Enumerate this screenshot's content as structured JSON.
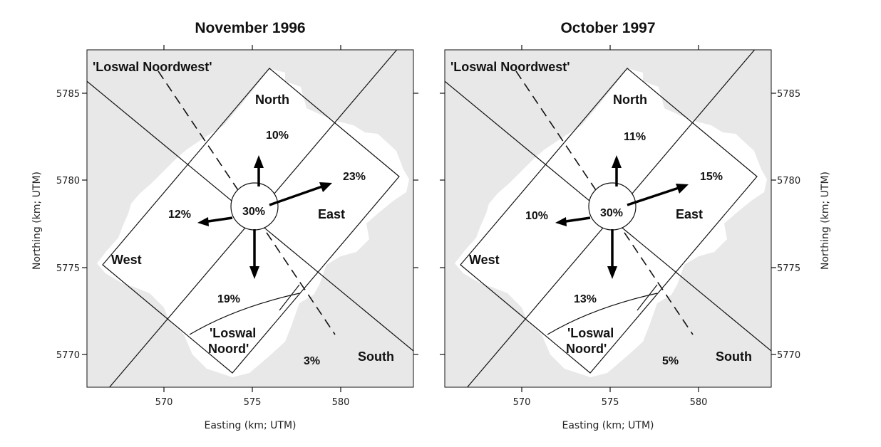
{
  "panels": [
    {
      "title": "November 1996",
      "xlabel": "Easting (km; UTM)",
      "ylabel": "Northing (km; UTM)",
      "x_ticks": [
        "570",
        "575",
        "580"
      ],
      "y_ticks": [
        "5785",
        "5780",
        "5775",
        "5770"
      ],
      "labels": {
        "loswal_noordwest": "'Loswal Noordwest'",
        "north": "North",
        "east": "East",
        "west": "West",
        "south": "South",
        "loswal_noord_1": "'Loswal",
        "loswal_noord_2": "Noord'"
      },
      "percentages": {
        "center": "30%",
        "north": "10%",
        "east": "23%",
        "west": "12%",
        "south": "19%",
        "disposal": "3%"
      }
    },
    {
      "title": "October 1997",
      "xlabel": "Easting (km; UTM)",
      "ylabel": "Northing (km; UTM)",
      "x_ticks": [
        "570",
        "575",
        "580"
      ],
      "y_ticks": [
        "5785",
        "5780",
        "5775",
        "5770"
      ],
      "labels": {
        "loswal_noordwest": "'Loswal Noordwest'",
        "north": "North",
        "east": "East",
        "west": "West",
        "south": "South",
        "loswal_noord_1": "'Loswal",
        "loswal_noord_2": "Noord'"
      },
      "percentages": {
        "center": "30%",
        "north": "11%",
        "east": "15%",
        "west": "10%",
        "south": "13%",
        "disposal": "5%"
      }
    }
  ],
  "colors": {
    "land": "#e8e8e8",
    "sea": "#ffffff",
    "ink": "#111111"
  }
}
